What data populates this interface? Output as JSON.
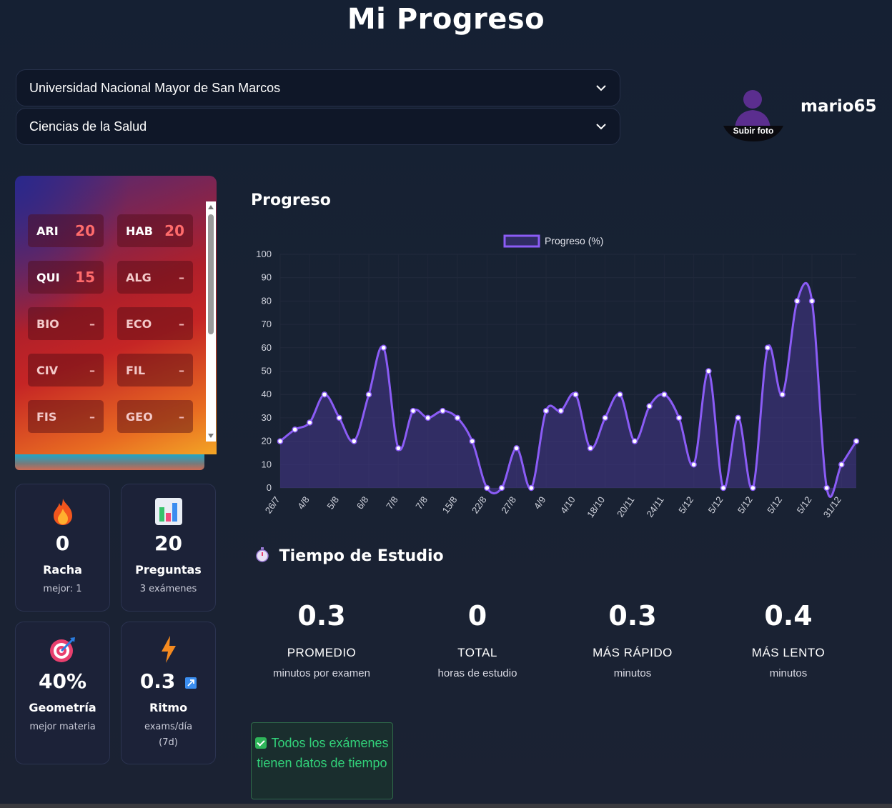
{
  "page_title": "Mi Progreso",
  "selects": {
    "university": "Universidad Nacional Mayor de San Marcos",
    "area": "Ciencias de la Salud"
  },
  "profile": {
    "upload_label": "Subir foto",
    "username": "mario65"
  },
  "subjects": [
    {
      "code": "ARI",
      "value": "20",
      "empty": false
    },
    {
      "code": "HAB",
      "value": "20",
      "empty": false
    },
    {
      "code": "QUI",
      "value": "15",
      "empty": false
    },
    {
      "code": "ALG",
      "value": "–",
      "empty": true
    },
    {
      "code": "BIO",
      "value": "–",
      "empty": true
    },
    {
      "code": "ECO",
      "value": "–",
      "empty": true
    },
    {
      "code": "CIV",
      "value": "–",
      "empty": true
    },
    {
      "code": "FIL",
      "value": "–",
      "empty": true
    },
    {
      "code": "FIS",
      "value": "–",
      "empty": true
    },
    {
      "code": "GEO",
      "value": "–",
      "empty": true
    }
  ],
  "stats": {
    "streak": {
      "value": "0",
      "label": "Racha",
      "sub": "mejor: 1",
      "icon": "fire-icon"
    },
    "questions": {
      "value": "20",
      "label": "Preguntas",
      "sub": "3 exámenes",
      "icon": "bar-chart-icon"
    },
    "best_subject": {
      "value": "40%",
      "label": "Geometría",
      "sub": "mejor materia",
      "icon": "target-icon"
    },
    "pace": {
      "value": "0.3",
      "label": "Ritmo",
      "sub1": "exams/día",
      "sub2": "(7d)",
      "icon": "lightning-icon",
      "trend_icon": "trend-up-icon"
    }
  },
  "progress_section": {
    "title": "Progreso"
  },
  "chart_data": {
    "type": "line",
    "title": "",
    "xlabel": "",
    "ylabel": "",
    "ylim": [
      0,
      100
    ],
    "yticks": [
      0,
      10,
      20,
      30,
      40,
      50,
      60,
      70,
      80,
      90,
      100
    ],
    "grid": true,
    "legend_position": "top-center",
    "color": "#8b5cf6",
    "fill": "rgba(80,60,160,0.45)",
    "tick_labels": [
      "26/7",
      "4/8",
      "5/8",
      "6/8",
      "7/8",
      "7/8",
      "15/8",
      "22/8",
      "27/8",
      "4/9",
      "4/10",
      "18/10",
      "20/11",
      "24/11",
      "5/12",
      "5/12",
      "5/12",
      "5/12",
      "5/12",
      "31/12"
    ],
    "series": [
      {
        "name": "Progreso (%)",
        "values": [
          20,
          25,
          28,
          40,
          30,
          20,
          40,
          60,
          17,
          33,
          30,
          33,
          30,
          20,
          0,
          0,
          17,
          0,
          33,
          33,
          40,
          17,
          30,
          40,
          20,
          35,
          40,
          30,
          10,
          50,
          0,
          30,
          0,
          60,
          40,
          80,
          80,
          0,
          10,
          20
        ]
      }
    ]
  },
  "study_time": {
    "title": "Tiempo de Estudio",
    "icon": "stopwatch-icon",
    "items": [
      {
        "value": "0.3",
        "label": "PROMEDIO",
        "sub": "minutos por examen"
      },
      {
        "value": "0",
        "label": "TOTAL",
        "sub": "horas de estudio"
      },
      {
        "value": "0.3",
        "label": "MÁS RÁPIDO",
        "sub": "minutos"
      },
      {
        "value": "0.4",
        "label": "MÁS LENTO",
        "sub": "minutos"
      }
    ]
  },
  "notice": {
    "text": "Todos los exámenes tienen datos de tiempo",
    "icon": "check-icon"
  }
}
